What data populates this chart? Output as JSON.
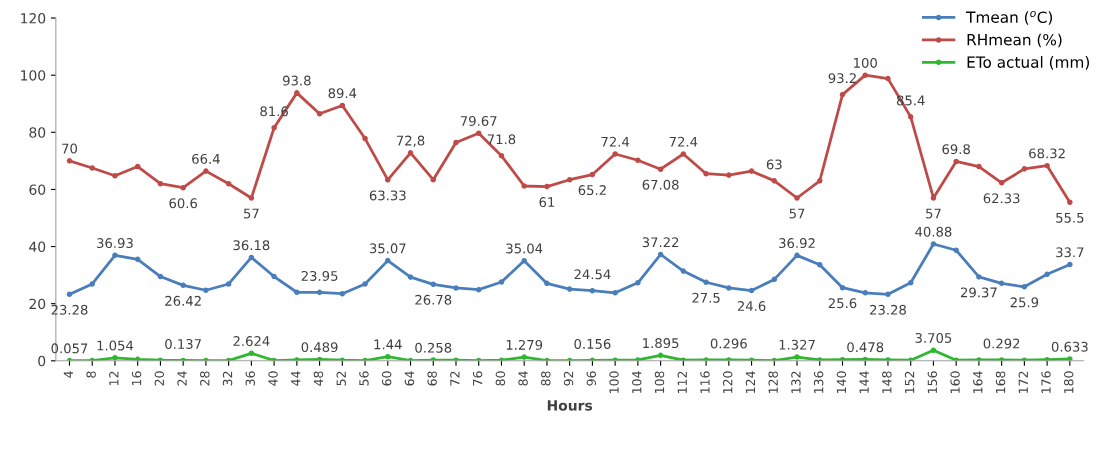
{
  "chart_data": {
    "type": "line",
    "xlabel": "Hours",
    "categories": [
      "4",
      "8",
      "12",
      "16",
      "20",
      "24",
      "28",
      "32",
      "36",
      "40",
      "44",
      "48",
      "52",
      "56",
      "60",
      "64",
      "68",
      "72",
      "76",
      "80",
      "84",
      "88",
      "92",
      "96",
      "100",
      "104",
      "108",
      "112",
      "116",
      "120",
      "124",
      "128",
      "132",
      "136",
      "140",
      "144",
      "148",
      "152",
      "156",
      "160",
      "164",
      "168",
      "172",
      "176",
      "180"
    ],
    "ylim": [
      0,
      120
    ],
    "yticks": [
      0,
      20,
      40,
      60,
      80,
      100,
      120
    ],
    "grid": false,
    "legend": "top right",
    "marker": "circle",
    "line_style": "solid",
    "series": [
      {
        "name": "Tmean ($^{o}$C)",
        "color": "#4a7ebb",
        "values": [
          23.28,
          26.9,
          36.93,
          35.5,
          29.5,
          26.42,
          24.7,
          26.9,
          36.18,
          29.5,
          24.0,
          23.95,
          23.5,
          26.9,
          35.07,
          29.3,
          26.78,
          25.5,
          24.9,
          27.6,
          35.04,
          27.1,
          25.1,
          24.54,
          23.8,
          27.3,
          37.22,
          31.4,
          27.5,
          25.5,
          24.6,
          28.5,
          36.92,
          33.6,
          25.6,
          23.8,
          23.28,
          27.3,
          40.88,
          38.7,
          29.37,
          27.1,
          25.9,
          30.3,
          33.7
        ],
        "value_labels": [
          "23.28",
          null,
          "36.93",
          null,
          null,
          "26.42",
          null,
          null,
          "36.18",
          null,
          null,
          "23.95",
          null,
          null,
          "35.07",
          null,
          "26.78",
          null,
          null,
          null,
          "35.04",
          null,
          null,
          "24.54",
          null,
          null,
          "37.22",
          null,
          "27.5",
          null,
          "24.6",
          null,
          "36.92",
          null,
          "25.6",
          null,
          "23.28",
          null,
          "40.88",
          null,
          "29.37",
          null,
          "25.9",
          null,
          "33.7"
        ]
      },
      {
        "name": "RHmean (%)",
        "color": "#be4b48",
        "values": [
          70,
          67.5,
          64.8,
          68,
          62,
          60.6,
          66.4,
          62,
          57,
          81.6,
          93.8,
          86.5,
          89.4,
          77.8,
          63.33,
          72.8,
          63.4,
          76.4,
          79.67,
          71.8,
          61.2,
          61,
          63.4,
          65.2,
          72.4,
          70.2,
          67.08,
          72.4,
          65.5,
          65,
          66.4,
          63,
          57,
          63,
          93.2,
          100,
          98.8,
          85.4,
          57,
          69.8,
          68,
          62.33,
          67.2,
          68.32,
          55.5
        ],
        "value_labels": [
          "70",
          null,
          null,
          null,
          null,
          "60.6",
          "66.4",
          null,
          "57",
          "81.6",
          "93.8",
          null,
          "89.4",
          null,
          "63.33",
          "72,8",
          null,
          null,
          "79.67",
          "71.8",
          null,
          "61",
          null,
          "65.2",
          "72.4",
          null,
          "67.08",
          "72.4",
          null,
          null,
          null,
          "63",
          "57",
          null,
          "93.2",
          "100",
          null,
          "85.4",
          "57",
          "69.8",
          null,
          "62.33",
          null,
          "68.32",
          "55.5"
        ]
      },
      {
        "name": "ETo actual (mm)",
        "color": "#2eb82e",
        "values": [
          0.057,
          0.1,
          1.054,
          0.5,
          0.2,
          0.137,
          0.1,
          0.1,
          2.624,
          0.1,
          0.3,
          0.489,
          0.2,
          0.1,
          1.44,
          0.1,
          0.258,
          0.2,
          0.1,
          0.2,
          1.279,
          0.1,
          0.1,
          0.156,
          0.2,
          0.3,
          1.895,
          0.2,
          0.3,
          0.296,
          0.2,
          0.1,
          1.327,
          0.3,
          0.4,
          0.478,
          0.3,
          0.2,
          3.705,
          0.2,
          0.3,
          0.292,
          0.2,
          0.4,
          0.633
        ],
        "value_labels": [
          "0.057",
          null,
          "1.054",
          null,
          null,
          "0.137",
          null,
          null,
          "2.624",
          null,
          null,
          "0.489",
          null,
          null,
          "1.44",
          null,
          "0.258",
          null,
          null,
          null,
          "1.279",
          null,
          null,
          "0.156",
          null,
          null,
          "1.895",
          null,
          null,
          "0.296",
          null,
          null,
          "1.327",
          null,
          null,
          "0.478",
          null,
          null,
          "3.705",
          null,
          null,
          "0.292",
          null,
          null,
          "0.633"
        ]
      }
    ]
  }
}
